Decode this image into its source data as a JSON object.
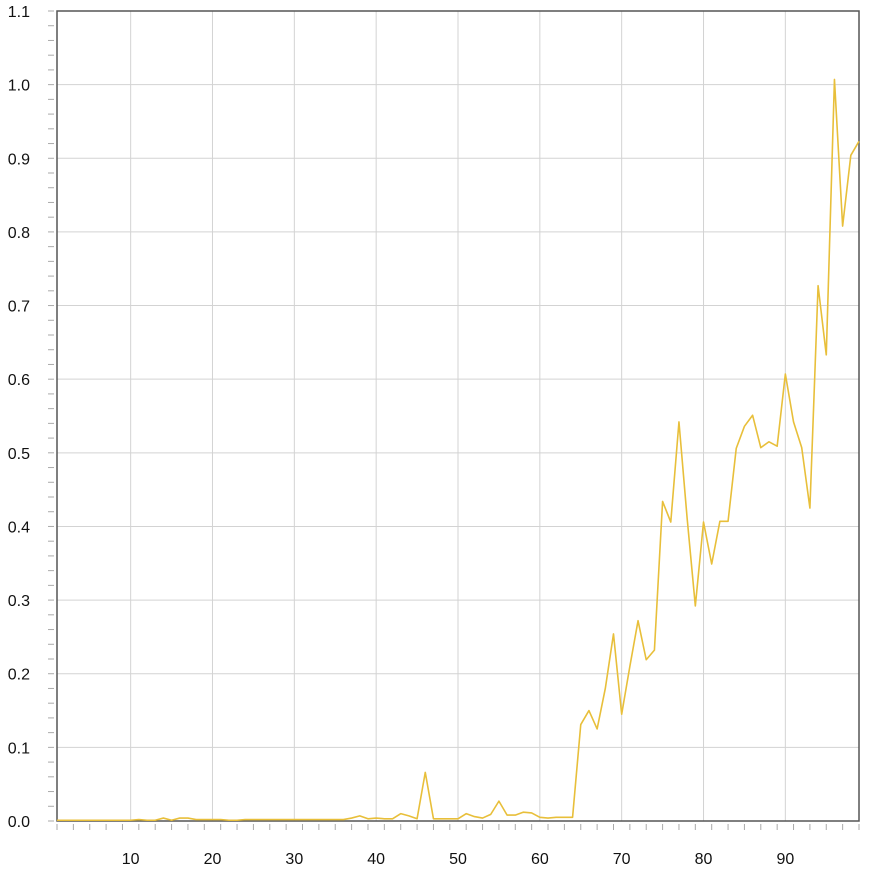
{
  "chart_data": {
    "type": "line",
    "title": "",
    "xlabel": "",
    "ylabel": "",
    "xlim": [
      1,
      99
    ],
    "ylim": [
      0,
      1.1
    ],
    "x_ticks": [
      10,
      20,
      30,
      40,
      50,
      60,
      70,
      80,
      90
    ],
    "x_tick_labels": [
      "10",
      "20",
      "30",
      "40",
      "50",
      "60",
      "70",
      "80",
      "90"
    ],
    "y_ticks": [
      0,
      0.1,
      0.2,
      0.3,
      0.4,
      0.5,
      0.6,
      0.7,
      0.8,
      0.9,
      1.0,
      1.1
    ],
    "y_tick_labels": [
      "0.0",
      "0.1",
      "0.2",
      "0.3",
      "0.4",
      "0.5",
      "0.6",
      "0.7",
      "0.8",
      "0.9",
      "1.0",
      "1.1"
    ],
    "grid": true,
    "colors": {
      "line": "#e8bf3a",
      "grid": "#d3d3d3",
      "axis": "#555555"
    },
    "series": [
      {
        "x": [
          1,
          2,
          3,
          4,
          5,
          6,
          7,
          8,
          9,
          10,
          11,
          12,
          13,
          14,
          15,
          16,
          17,
          18,
          19,
          20,
          21,
          22,
          23,
          24,
          25,
          26,
          27,
          28,
          29,
          30,
          31,
          32,
          33,
          34,
          35,
          36,
          37,
          38,
          39,
          40,
          41,
          42,
          43,
          44,
          45,
          46,
          47,
          48,
          49,
          50,
          51,
          52,
          53,
          54,
          55,
          56,
          57,
          58,
          59,
          60,
          61,
          62,
          63,
          64,
          65,
          66,
          67,
          68,
          69,
          70,
          71,
          72,
          73,
          74,
          75,
          76,
          77,
          78,
          79,
          80,
          81,
          82,
          83,
          84,
          85,
          86,
          87,
          88,
          89,
          90,
          91,
          92,
          93,
          94,
          95,
          96,
          97,
          98,
          99
        ],
        "values": [
          0.001,
          0.001,
          0.001,
          0.001,
          0.001,
          0.001,
          0.001,
          0.001,
          0.001,
          0.001,
          0.002,
          0.001,
          0.001,
          0.004,
          0.001,
          0.004,
          0.004,
          0.002,
          0.002,
          0.002,
          0.002,
          0.001,
          0.001,
          0.002,
          0.002,
          0.002,
          0.002,
          0.002,
          0.002,
          0.002,
          0.002,
          0.002,
          0.002,
          0.002,
          0.002,
          0.002,
          0.004,
          0.007,
          0.003,
          0.004,
          0.003,
          0.003,
          0.01,
          0.007,
          0.003,
          0.066,
          0.003,
          0.003,
          0.003,
          0.003,
          0.01,
          0.006,
          0.004,
          0.009,
          0.027,
          0.008,
          0.008,
          0.012,
          0.011,
          0.005,
          0.004,
          0.005,
          0.005,
          0.005,
          0.131,
          0.15,
          0.125,
          0.18,
          0.254,
          0.145,
          0.21,
          0.272,
          0.219,
          0.232,
          0.434,
          0.406,
          0.542,
          0.411,
          0.292,
          0.406,
          0.349,
          0.407,
          0.407,
          0.506,
          0.536,
          0.551,
          0.507,
          0.515,
          0.509,
          0.607,
          0.542,
          0.507,
          0.425,
          0.727,
          0.633,
          1.007,
          0.808,
          0.904,
          0.923
        ]
      }
    ]
  }
}
